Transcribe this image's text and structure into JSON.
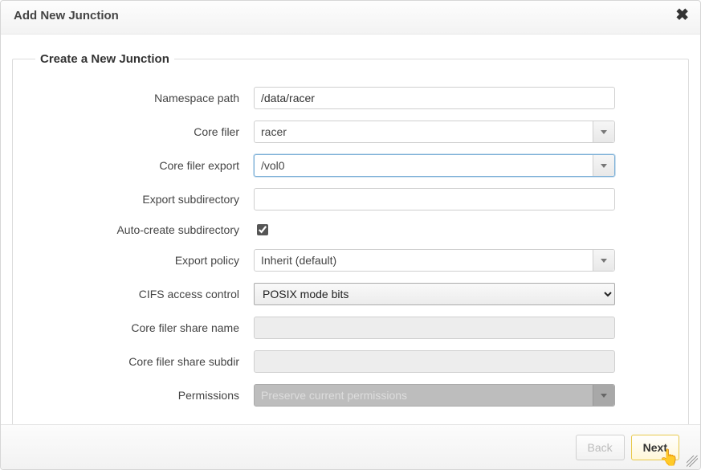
{
  "dialog": {
    "title": "Add New Junction"
  },
  "group": {
    "legend": "Create a New Junction"
  },
  "fields": {
    "namespace_path": {
      "label": "Namespace path",
      "value": "/data/racer"
    },
    "core_filer": {
      "label": "Core filer",
      "value": "racer"
    },
    "core_filer_export": {
      "label": "Core filer export",
      "value": "/vol0"
    },
    "export_subdir": {
      "label": "Export subdirectory",
      "value": ""
    },
    "auto_create": {
      "label": "Auto-create subdirectory",
      "checked": true
    },
    "export_policy": {
      "label": "Export policy",
      "value": "Inherit (default)"
    },
    "cifs_access": {
      "label": "CIFS access control",
      "value": "POSIX mode bits"
    },
    "share_name": {
      "label": "Core filer share name",
      "value": ""
    },
    "share_subdir": {
      "label": "Core filer share subdir",
      "value": ""
    },
    "permissions": {
      "label": "Permissions",
      "value": "Preserve current permissions"
    }
  },
  "buttons": {
    "back": "Back",
    "next": "Next"
  },
  "colors": {
    "dialog_border": "#d6d6d6",
    "highlight_border": "#7aaed6",
    "primary_border": "#e8c94a",
    "disabled_bg": "#bdbdbd"
  }
}
